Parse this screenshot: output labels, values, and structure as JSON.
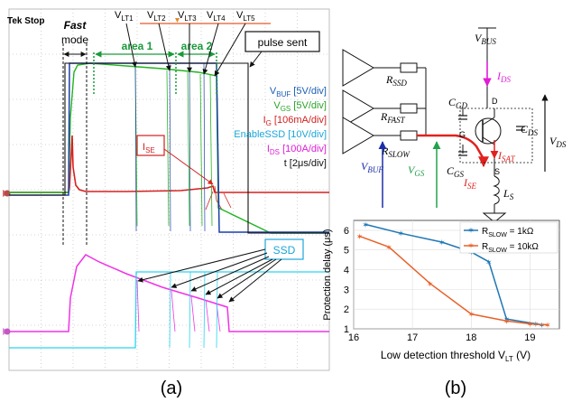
{
  "panel_a": {
    "scope_label": "Tek Stop",
    "fast_mode": [
      "Fast",
      "mode"
    ],
    "area1": "area 1",
    "area2": "area 2",
    "pulse_sent": "pulse sent",
    "vlt": [
      {
        "main": "V",
        "sub": "LT1"
      },
      {
        "main": "V",
        "sub": "LT2"
      },
      {
        "main": "V",
        "sub": "LT3"
      },
      {
        "main": "V",
        "sub": "LT4"
      },
      {
        "main": "V",
        "sub": "LT5"
      }
    ],
    "legend": [
      {
        "main": "V",
        "sub": "BUF",
        "rest": " [5V/div]",
        "color": "#1a5fb4"
      },
      {
        "main": "V",
        "sub": "GS",
        "rest": " [5V/div]",
        "color": "#2aa32a"
      },
      {
        "main": "I",
        "sub": "G",
        "rest": " [106mA/div]",
        "color": "#d11f1f"
      },
      {
        "main": "EnableSSD",
        "sub": "",
        "rest": " [10V/div]",
        "color": "#1aa6d9"
      },
      {
        "main": "I",
        "sub": "DS",
        "rest": " [100A/div]",
        "color": "#e01cd6"
      },
      {
        "main": "t",
        "sub": "",
        "rest": " [2μs/div]",
        "color": "#111111"
      }
    ],
    "ise": {
      "main": "I",
      "sub": "SE"
    },
    "ssd": "SSD",
    "caption": "(a)",
    "colors": {
      "vbuf": "#1c3fa8",
      "vgs": "#22b422",
      "ig": "#d62020",
      "enable": "#2ad4f0",
      "ids": "#f033e6",
      "grid": "#c8c8c8"
    }
  },
  "panel_b": {
    "vbus": {
      "main": "V",
      "sub": "BUS"
    },
    "ids": {
      "main": "I",
      "sub": "DS"
    },
    "rssd": {
      "main": "R",
      "sub": "SSD"
    },
    "rfast": {
      "main": "R",
      "sub": "FAST"
    },
    "rslow": {
      "main": "R",
      "sub": "SLOW"
    },
    "vbuf": {
      "main": "V",
      "sub": "BUF"
    },
    "vgs": {
      "main": "V",
      "sub": "GS"
    },
    "cgd": {
      "main": "C",
      "sub": "GD"
    },
    "cgs": {
      "main": "C",
      "sub": "GS"
    },
    "cds": {
      "main": "C",
      "sub": "DS"
    },
    "isat": {
      "main": "I",
      "sub": "SAT"
    },
    "ise": {
      "main": "I",
      "sub": "SE"
    },
    "ls": {
      "main": "L",
      "sub": "S"
    },
    "vds": {
      "main": "V",
      "sub": "DS"
    },
    "pin_d": "D",
    "pin_g": "G",
    "pin_s": "S",
    "caption": "(b)"
  },
  "chart_data": {
    "type": "line",
    "xlabel": "Low detection threshold V",
    "xlabel_sub": "LT",
    "xlabel_unit": " (V)",
    "ylabel": "Protection delay (μs)",
    "xlim": [
      16,
      19.5
    ],
    "ylim": [
      1,
      6.5
    ],
    "xticks": [
      16,
      17,
      18,
      19
    ],
    "yticks": [
      1,
      2,
      3,
      4,
      5,
      6
    ],
    "grid": true,
    "legend_position": "top-right",
    "series": [
      {
        "name": "R",
        "name_sub": "SLOW",
        "name_rest": " = 1kΩ",
        "color": "#1f77b4",
        "x": [
          16.2,
          16.8,
          17.5,
          18.0,
          18.3,
          18.6,
          19.1,
          19.2
        ],
        "y": [
          6.3,
          5.85,
          5.4,
          4.9,
          4.4,
          1.5,
          1.25,
          1.2
        ]
      },
      {
        "name": "R",
        "name_sub": "SLOW",
        "name_rest": " = 10kΩ",
        "color": "#e8622a",
        "x": [
          16.1,
          16.6,
          17.3,
          18.0,
          18.6,
          19.0,
          19.3
        ],
        "y": [
          5.7,
          5.15,
          3.3,
          1.75,
          1.4,
          1.25,
          1.2
        ]
      }
    ]
  }
}
